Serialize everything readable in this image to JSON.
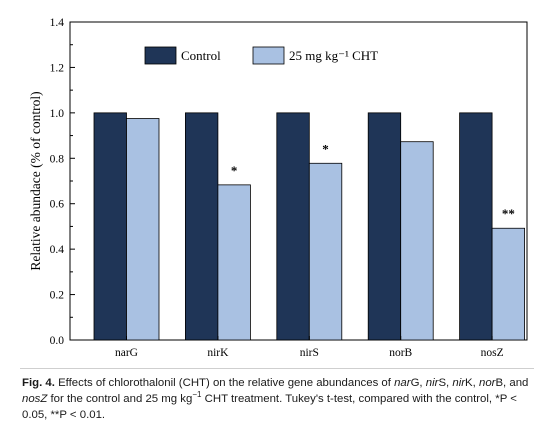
{
  "chart_data": {
    "type": "bar",
    "categories": [
      "narG",
      "nirK",
      "nirS",
      "norB",
      "nosZ"
    ],
    "series": [
      {
        "name": "Control",
        "values": [
          1.0,
          1.0,
          1.0,
          1.0,
          1.0
        ],
        "color": "#1f3557"
      },
      {
        "name": "25 mg kg⁻¹ CHT",
        "values": [
          0.975,
          0.683,
          0.778,
          0.873,
          0.492
        ],
        "color": "#a9c1e2"
      }
    ],
    "significance": [
      "",
      "*",
      "*",
      "",
      "**"
    ],
    "ylabel": "Relative abundace (% of control)",
    "xlabel": "",
    "ylim": [
      0.0,
      1.4
    ],
    "yticks": [
      "0.0",
      "0.2",
      "0.4",
      "0.6",
      "0.8",
      "1.0",
      "1.2",
      "1.4"
    ],
    "grid": false,
    "legend_position": "top"
  },
  "caption": {
    "label": "Fig. 4.",
    "parts": [
      {
        "text": " Effects of chlorothalonil (CHT) on the relative gene abundances of ",
        "italic": false
      },
      {
        "text": "nar",
        "italic": true
      },
      {
        "text": "G, ",
        "italic": false
      },
      {
        "text": "nir",
        "italic": true
      },
      {
        "text": "S, ",
        "italic": false
      },
      {
        "text": "nir",
        "italic": true
      },
      {
        "text": "K, ",
        "italic": false
      },
      {
        "text": "nor",
        "italic": true
      },
      {
        "text": "B, and ",
        "italic": false
      },
      {
        "text": "nosZ",
        "italic": true
      },
      {
        "text": " for the control and 25 mg kg",
        "italic": false
      },
      {
        "text": "−1",
        "italic": false,
        "sup": true
      },
      {
        "text": " CHT treatment. Tukey's t-test, compared with the control, *P < 0.05, **P < 0.01.",
        "italic": false
      }
    ]
  }
}
